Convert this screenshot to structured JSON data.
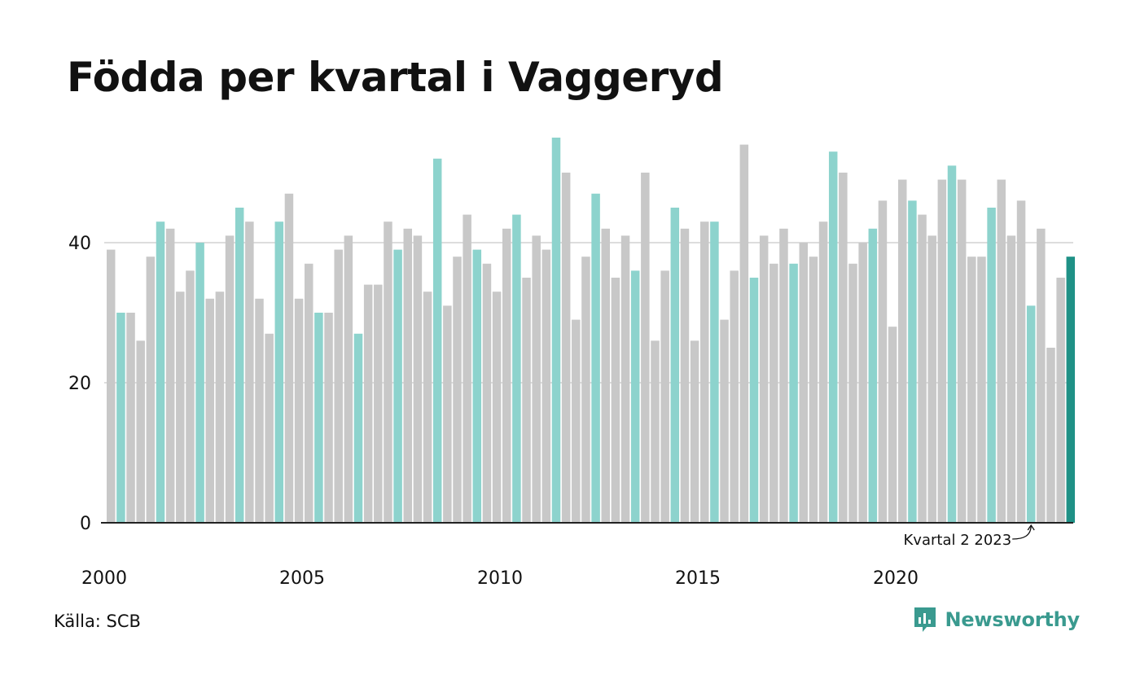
{
  "title": "Födda per kvartal i Vaggeryd",
  "source": "Källa: SCB",
  "brand": {
    "name": "Newsworthy",
    "icon": "newsworthy-logo-icon"
  },
  "colors": {
    "default_bar": "#c8c8c8",
    "highlight_bar": "#8dd3cd",
    "latest_bar": "#1f9186",
    "gridline": "#dddddd",
    "axis_line": "#222222",
    "brand": "#3a9a8f"
  },
  "chart_data": {
    "type": "bar",
    "title": "Födda per kvartal i Vaggeryd",
    "xlabel": "",
    "ylabel": "",
    "ylim": [
      0,
      56
    ],
    "yticks": [
      0,
      20,
      40
    ],
    "grid": true,
    "start_year": 2000,
    "quarters_per_year": 4,
    "xtick_labels": [
      "2000",
      "2005",
      "2010",
      "2015",
      "2020"
    ],
    "values": [
      39,
      30,
      30,
      26,
      38,
      43,
      42,
      33,
      36,
      40,
      32,
      33,
      41,
      45,
      43,
      32,
      27,
      43,
      47,
      32,
      37,
      30,
      30,
      39,
      41,
      27,
      34,
      34,
      43,
      39,
      42,
      41,
      33,
      52,
      31,
      38,
      44,
      39,
      37,
      33,
      42,
      44,
      35,
      41,
      39,
      55,
      50,
      29,
      38,
      47,
      42,
      35,
      41,
      36,
      50,
      26,
      36,
      45,
      42,
      26,
      43,
      43,
      29,
      36,
      54,
      35,
      41,
      37,
      42,
      37,
      40,
      38,
      43,
      53,
      50,
      37,
      40,
      42,
      46,
      28,
      49,
      46,
      44,
      41,
      49,
      51,
      49,
      38,
      38,
      45,
      49,
      41,
      46,
      31,
      42,
      25,
      35,
      38
    ],
    "highlight_quarter": 2,
    "annotation": {
      "text": "Kvartal 2 2023",
      "year": 2023,
      "quarter": 2
    }
  }
}
